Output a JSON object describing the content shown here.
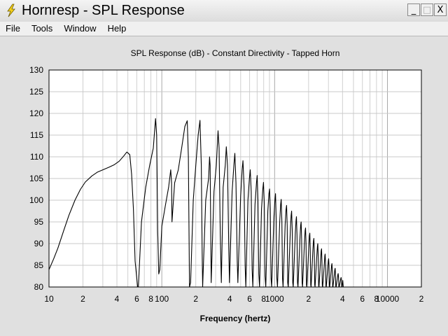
{
  "window": {
    "title": "Hornresp - SPL Response",
    "icon": "lightning-bolt-icon",
    "controls": {
      "minimize": "_",
      "maximize": "□",
      "close": "X"
    }
  },
  "menu": {
    "items": [
      "File",
      "Tools",
      "Window",
      "Help"
    ]
  },
  "chart_data": {
    "type": "line",
    "title": "SPL Response (dB) - Constant Directivity - Tapped Horn",
    "xlabel": "Frequency (hertz)",
    "ylabel": "",
    "x_scale": "log",
    "xlim": [
      10,
      20000
    ],
    "ylim": [
      80,
      130
    ],
    "y_ticks": [
      80,
      85,
      90,
      95,
      100,
      105,
      110,
      115,
      120,
      125,
      130
    ],
    "x_ticks": [
      {
        "value": 10,
        "label": "10"
      },
      {
        "value": 20,
        "label": "2"
      },
      {
        "value": 40,
        "label": "4"
      },
      {
        "value": 60,
        "label": "6"
      },
      {
        "value": 80,
        "label": "8"
      },
      {
        "value": 100,
        "label": "100"
      },
      {
        "value": 200,
        "label": "2"
      },
      {
        "value": 400,
        "label": "4"
      },
      {
        "value": 600,
        "label": "6"
      },
      {
        "value": 800,
        "label": "8"
      },
      {
        "value": 1000,
        "label": "1000"
      },
      {
        "value": 2000,
        "label": "2"
      },
      {
        "value": 4000,
        "label": "4"
      },
      {
        "value": 6000,
        "label": "6"
      },
      {
        "value": 8000,
        "label": "8"
      },
      {
        "value": 10000,
        "label": "10000"
      },
      {
        "value": 20000,
        "label": "2"
      }
    ],
    "grid": true,
    "series": [
      {
        "color": "#000000",
        "x": [
          10,
          11,
          12,
          13.5,
          15,
          17,
          19,
          21,
          24,
          27,
          30,
          34,
          38,
          42,
          46,
          49,
          52,
          54,
          56,
          58,
          60,
          61,
          62,
          66,
          72,
          78,
          84,
          88,
          90,
          92,
          94,
          96,
          100,
          108,
          115,
          120,
          122,
          123,
          130,
          140,
          150,
          160,
          168,
          172,
          176,
          180,
          190,
          200,
          210,
          218,
          224,
          228,
          230,
          245,
          260,
          265,
          268,
          271,
          274,
          290,
          304,
          315,
          322,
          330,
          337,
          350,
          365,
          373,
          382,
          392,
          398,
          420,
          435,
          444,
          454,
          466,
          472,
          500,
          515,
          524,
          536,
          548,
          556,
          580,
          598,
          608,
          620,
          632,
          641,
          670,
          690,
          700,
          712,
          724,
          735,
          765,
          785,
          796,
          810,
          822,
          835,
          870,
          890,
          902,
          915,
          930,
          942,
          985,
          1005,
          1018,
          1032,
          1046,
          1060,
          1110,
          1130,
          1144,
          1160,
          1174,
          1188,
          1240,
          1262,
          1276,
          1292,
          1306,
          1320,
          1380,
          1400,
          1415,
          1432,
          1448,
          1462,
          1525,
          1548,
          1562,
          1580,
          1596,
          1610,
          1680,
          1702,
          1718,
          1736,
          1752,
          1768,
          1840,
          1864,
          1880,
          1898,
          1916,
          1932,
          2010,
          2034,
          2052,
          2070,
          2088,
          2104,
          2185,
          2210,
          2228,
          2248,
          2266,
          2284,
          2370,
          2396,
          2414,
          2434,
          2454,
          2472,
          2560,
          2586,
          2606,
          2626,
          2646,
          2666,
          2760,
          2786,
          2806,
          2828,
          2850,
          2870,
          2965,
          2990,
          3012,
          3034,
          3056,
          3076,
          3175,
          3200,
          3222,
          3246,
          3268,
          3290,
          3390,
          3415,
          3438,
          3462,
          3485,
          3508,
          3610,
          3636,
          3660,
          3685,
          3710,
          3735,
          3835,
          3860,
          3885,
          3910,
          3936,
          3960,
          4020,
          4060
        ],
        "y": [
          84,
          86.5,
          89,
          93,
          96.5,
          100,
          102.5,
          104.2,
          105.6,
          106.5,
          107,
          107.6,
          108.2,
          109,
          110.2,
          111.1,
          110.5,
          106,
          98,
          86,
          82,
          80,
          80,
          95,
          103,
          108,
          112,
          118.8,
          115,
          93,
          83,
          84,
          94,
          99,
          103,
          107,
          104,
          95,
          104,
          107,
          112,
          117,
          118.3,
          110,
          80,
          81,
          100,
          108,
          115,
          118.4,
          108,
          88,
          80,
          100,
          105,
          110,
          108,
          96,
          81,
          102,
          108,
          116,
          112,
          92,
          81,
          103,
          108,
          112.3,
          108,
          89,
          81,
          102,
          108,
          110.8,
          104,
          86,
          81,
          101,
          107,
          109.1,
          103,
          85,
          80,
          100,
          105,
          107,
          102,
          84,
          80,
          99,
          104,
          105.7,
          100,
          83,
          80,
          98,
          102.5,
          104.1,
          99,
          82.5,
          80,
          97.5,
          101.5,
          102.6,
          98,
          82,
          80,
          96,
          100,
          101.5,
          96,
          82,
          80,
          95,
          99,
          100.2,
          95,
          82,
          80,
          94.5,
          97.8,
          98.8,
          94,
          81,
          80,
          93.5,
          96.5,
          97.5,
          93,
          81,
          80,
          92.5,
          95.3,
          96.2,
          92,
          81,
          80,
          91.5,
          94.2,
          95,
          91,
          81,
          80,
          90.5,
          93,
          93.6,
          90,
          80.5,
          80,
          89.5,
          91.8,
          92.4,
          89,
          80.5,
          80,
          88.5,
          90.6,
          91.2,
          88,
          80.5,
          80,
          87.5,
          89.4,
          90,
          87,
          80.3,
          80,
          86.5,
          88.3,
          88.8,
          86,
          80.3,
          80,
          85.5,
          87.2,
          87.6,
          85.5,
          80.2,
          80,
          84.8,
          86.1,
          86.5,
          84.8,
          80.2,
          80,
          84,
          85,
          85.4,
          84,
          80.1,
          80,
          83.2,
          84,
          84.3,
          83.2,
          80.1,
          80,
          82.3,
          82.9,
          83.1,
          82.3,
          80,
          80,
          81.6,
          82,
          82.2,
          81.5,
          80,
          80,
          81.5,
          80
        ]
      }
    ]
  }
}
